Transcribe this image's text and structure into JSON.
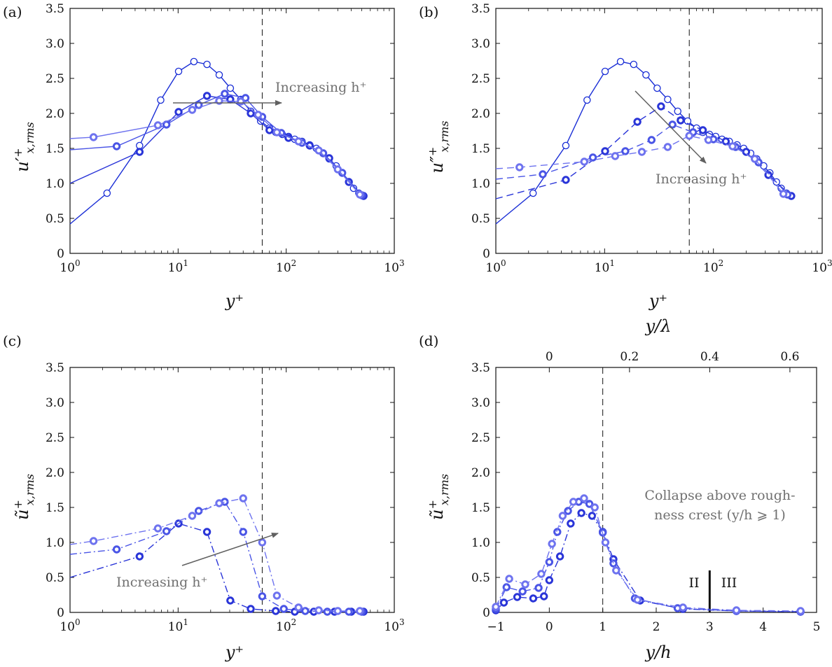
{
  "figure": {
    "panels": [
      {
        "id": "a",
        "label": "(a)",
        "xlabel": "y⁺",
        "ylabel": "u′⁺ x,rms",
        "ylabel_main": "u′",
        "ylabel_sup": "+",
        "ylabel_sub": "x,rms"
      },
      {
        "id": "b",
        "label": "(b)",
        "xlabel": "y⁺",
        "ylabel": "u″⁺ x,rms",
        "ylabel_main": "u″",
        "ylabel_sup": "+",
        "ylabel_sub": "x,rms"
      },
      {
        "id": "c",
        "label": "(c)",
        "xlabel": "y⁺",
        "ylabel": "ũ⁺ x,rms",
        "ylabel_main": "ũ",
        "ylabel_sup": "+",
        "ylabel_sub": "x,rms"
      },
      {
        "id": "d",
        "label": "(d)",
        "xlabel": "y/h",
        "xlabel_top": "y/λ",
        "ylabel": "ũ⁺ x,rms",
        "ylabel_main": "ũ",
        "ylabel_sup": "+",
        "ylabel_sub": "x,rms"
      }
    ],
    "annotations": {
      "a_arrow": "Increasing h⁺",
      "b_arrow": "Increasing h⁺",
      "c_arrow": "Increasing h⁺",
      "d_line1": "Collapse above rough-",
      "d_line2": "ness crest (y/h ⩾ 1)",
      "d_region_left": "II",
      "d_region_right": "III"
    },
    "colors": {
      "smooth": "#1a2ed6",
      "dark": "#2a35d8",
      "mid": "#4a55e6",
      "light": "#6e73ef",
      "axis": "#111111",
      "annotation": "#707070"
    }
  },
  "chart_data": [
    {
      "panel": "a",
      "type": "line",
      "xscale": "log",
      "xlim": [
        1,
        1000
      ],
      "ylim": [
        0,
        3.5
      ],
      "xticks": [
        "10^0",
        "10^1",
        "10^2",
        "10^3"
      ],
      "yticks": [
        "0",
        "0.5",
        "1.0",
        "1.5",
        "2.0",
        "2.5",
        "3.0",
        "3.5"
      ],
      "vline_x": 60,
      "series": [
        {
          "style": "smooth-open",
          "x": [
            1,
            2.2,
            4.4,
            6.9,
            10.1,
            14.0,
            18.5,
            24.0,
            30.4,
            38.0,
            47.0,
            58.0,
            70.0,
            80.0,
            92.0,
            105.0,
            120.0,
            140.0,
            165.0,
            190.0,
            220.0,
            250.0,
            290.0,
            330.0,
            380.0,
            420.0,
            470.0,
            520.0
          ],
          "y": [
            0.42,
            0.86,
            1.54,
            2.19,
            2.6,
            2.74,
            2.7,
            2.55,
            2.36,
            2.2,
            2.03,
            1.89,
            1.79,
            1.73,
            1.7,
            1.67,
            1.63,
            1.6,
            1.55,
            1.5,
            1.43,
            1.35,
            1.25,
            1.15,
            1.02,
            0.93,
            0.86,
            0.82
          ]
        },
        {
          "style": "dark-dot",
          "x": [
            1,
            4.4,
            10.1,
            18.5,
            30.4,
            47.0,
            70.0,
            105.0,
            165.0,
            250.0,
            380.0,
            520.0
          ],
          "y": [
            1.0,
            1.45,
            2.02,
            2.25,
            2.2,
            2.0,
            1.76,
            1.65,
            1.54,
            1.36,
            1.02,
            0.82
          ]
        },
        {
          "style": "mid-dot",
          "x": [
            1,
            2.7,
            7.8,
            15.5,
            27.0,
            42.0,
            60.0,
            90.0,
            140.0,
            220.0,
            330.0,
            500.0
          ],
          "y": [
            1.48,
            1.53,
            1.84,
            2.12,
            2.28,
            2.22,
            1.95,
            1.72,
            1.58,
            1.43,
            1.15,
            0.83
          ]
        },
        {
          "style": "light-dot",
          "x": [
            1,
            1.65,
            6.5,
            13.5,
            24.0,
            38.0,
            55.0,
            82.0,
            130.0,
            200.0,
            300.0,
            480.0
          ],
          "y": [
            1.64,
            1.66,
            1.83,
            2.05,
            2.18,
            2.17,
            1.98,
            1.73,
            1.6,
            1.47,
            1.2,
            0.84
          ]
        }
      ]
    },
    {
      "panel": "b",
      "type": "line",
      "xscale": "log",
      "xlim": [
        1,
        1000
      ],
      "ylim": [
        0,
        3.5
      ],
      "xticks": [
        "10^0",
        "10^1",
        "10^2",
        "10^3"
      ],
      "yticks": [
        "0",
        "0.5",
        "1.0",
        "1.5",
        "2.0",
        "2.5",
        "3.0",
        "3.5"
      ],
      "vline_x": 60,
      "series": [
        {
          "style": "smooth-open",
          "x": [
            1,
            2.2,
            4.4,
            6.9,
            10.1,
            14.0,
            18.5,
            24.0,
            30.4,
            38.0,
            47.0,
            58.0,
            70.0,
            80.0,
            92.0,
            105.0,
            120.0,
            140.0,
            165.0,
            190.0,
            220.0,
            250.0,
            290.0,
            330.0,
            380.0,
            420.0,
            470.0,
            520.0
          ],
          "y": [
            0.42,
            0.86,
            1.54,
            2.19,
            2.6,
            2.74,
            2.7,
            2.55,
            2.36,
            2.2,
            2.03,
            1.89,
            1.79,
            1.73,
            1.7,
            1.67,
            1.63,
            1.6,
            1.55,
            1.5,
            1.43,
            1.35,
            1.25,
            1.15,
            1.02,
            0.93,
            0.86,
            0.82
          ]
        },
        {
          "style": "dark-dot",
          "x": [
            1,
            4.4,
            10.1,
            20.0,
            33.0,
            50.0,
            80.0,
            130.0,
            200.0,
            320.0,
            520.0
          ],
          "y": [
            0.78,
            1.05,
            1.46,
            1.88,
            2.1,
            1.9,
            1.76,
            1.6,
            1.45,
            1.12,
            0.82
          ]
        },
        {
          "style": "mid-dot",
          "x": [
            1,
            2.7,
            7.8,
            15.5,
            27.0,
            42.0,
            65.0,
            100.0,
            160.0,
            260.0,
            480.0
          ],
          "y": [
            1.06,
            1.13,
            1.37,
            1.46,
            1.62,
            1.84,
            1.73,
            1.63,
            1.52,
            1.3,
            0.84
          ]
        },
        {
          "style": "light-dot",
          "x": [
            1,
            1.65,
            6.5,
            12.5,
            22.0,
            38.0,
            60.0,
            90.0,
            150.0,
            240.0,
            440.0
          ],
          "y": [
            1.21,
            1.23,
            1.31,
            1.39,
            1.45,
            1.52,
            1.68,
            1.62,
            1.53,
            1.35,
            0.85
          ]
        }
      ]
    },
    {
      "panel": "c",
      "type": "line",
      "xscale": "log",
      "xlim": [
        1,
        1000
      ],
      "ylim": [
        0,
        3.5
      ],
      "xticks": [
        "10^0",
        "10^1",
        "10^2",
        "10^3"
      ],
      "yticks": [
        "0",
        "0.5",
        "1.0",
        "1.5",
        "2.0",
        "2.5",
        "3.0",
        "3.5"
      ],
      "vline_x": 60,
      "series": [
        {
          "style": "dark-dot",
          "x": [
            1,
            4.4,
            10.1,
            18.5,
            30.4,
            47.0,
            80.0,
            120.0,
            180.0,
            280.0,
            400.0,
            520.0
          ],
          "y": [
            0.5,
            0.8,
            1.27,
            1.15,
            0.17,
            0.05,
            0.02,
            0.01,
            0.01,
            0.01,
            0.01,
            0.01
          ]
        },
        {
          "style": "mid-dot",
          "x": [
            1,
            2.7,
            7.8,
            15.5,
            27.0,
            40.0,
            60.0,
            95.0,
            150.0,
            240.0,
            380.0,
            500.0
          ],
          "y": [
            0.83,
            0.9,
            1.16,
            1.45,
            1.58,
            1.15,
            0.23,
            0.05,
            0.02,
            0.01,
            0.01,
            0.01
          ]
        },
        {
          "style": "light-dot",
          "x": [
            1,
            1.65,
            6.5,
            13.5,
            24.0,
            40.0,
            60.0,
            82.0,
            130.0,
            200.0,
            300.0,
            480.0
          ],
          "y": [
            0.97,
            1.02,
            1.2,
            1.38,
            1.56,
            1.63,
            1.0,
            0.24,
            0.07,
            0.03,
            0.02,
            0.02
          ]
        }
      ]
    },
    {
      "panel": "d",
      "type": "line",
      "xscale": "linear",
      "xlim": [
        -1,
        5
      ],
      "ylim": [
        0,
        3.5
      ],
      "xticks": [
        "−1",
        "0",
        "1",
        "2",
        "3",
        "4",
        "5"
      ],
      "xticks_top": [
        "0",
        "0.2",
        "0.4",
        "0.6"
      ],
      "yticks": [
        "0",
        "0.5",
        "1.0",
        "1.5",
        "2.0",
        "2.5",
        "3.0",
        "3.5"
      ],
      "vline_x": 1,
      "region_marker_x": 3,
      "series": [
        {
          "style": "dark-dot",
          "x": [
            -1.0,
            -0.85,
            -0.6,
            -0.3,
            -0.1,
            0.0,
            0.2,
            0.4,
            0.6,
            0.8,
            1.0,
            1.2,
            1.7,
            2.5,
            3.5,
            4.7
          ],
          "y": [
            0.03,
            0.14,
            0.22,
            0.2,
            0.23,
            0.46,
            0.8,
            1.27,
            1.42,
            1.38,
            1.15,
            0.76,
            0.17,
            0.05,
            0.02,
            0.01
          ]
        },
        {
          "style": "mid-dot",
          "x": [
            -1.0,
            -0.8,
            -0.5,
            -0.2,
            0.0,
            0.15,
            0.35,
            0.55,
            0.75,
            1.0,
            1.2,
            1.6,
            2.4,
            3.5,
            4.7
          ],
          "y": [
            0.05,
            0.36,
            0.3,
            0.35,
            0.72,
            1.15,
            1.45,
            1.58,
            1.55,
            1.14,
            0.7,
            0.2,
            0.06,
            0.02,
            0.01
          ]
        },
        {
          "style": "light-dot",
          "x": [
            -1.0,
            -0.75,
            -0.45,
            -0.15,
            0.05,
            0.25,
            0.45,
            0.65,
            0.85,
            1.05,
            1.25,
            1.65,
            2.5,
            3.5,
            4.7
          ],
          "y": [
            0.08,
            0.48,
            0.4,
            0.55,
            0.98,
            1.38,
            1.58,
            1.63,
            1.5,
            1.0,
            0.6,
            0.18,
            0.07,
            0.03,
            0.02
          ]
        }
      ]
    }
  ]
}
